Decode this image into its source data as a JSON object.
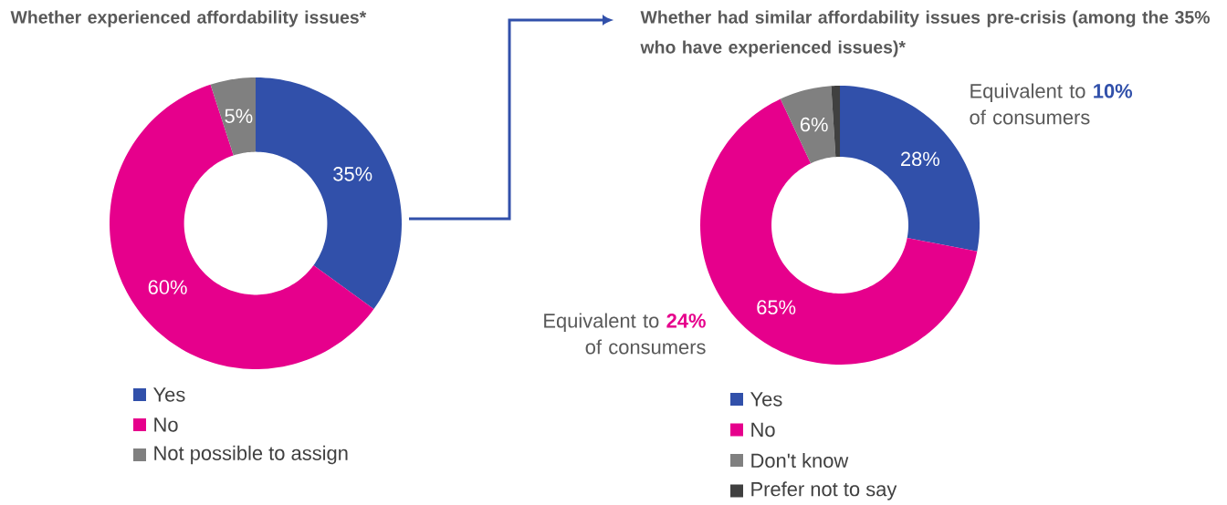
{
  "chart_data": [
    {
      "type": "donut",
      "title": "Whether experienced affordability issues*",
      "categories": [
        "Yes",
        "No",
        "Not possible to assign"
      ],
      "values": [
        35,
        60,
        5
      ],
      "colors": [
        "#3150aa",
        "#e6008c",
        "#808080"
      ],
      "value_labels": [
        "35%",
        "60%",
        "5%"
      ],
      "legend": "bottom"
    },
    {
      "type": "donut",
      "title": "Whether had similar affordability issues pre-crisis (among the 35% who have experienced issues)*",
      "categories": [
        "Yes",
        "No",
        "Don't know",
        "Prefer not to say"
      ],
      "values": [
        28,
        65,
        6,
        1
      ],
      "colors": [
        "#3150aa",
        "#e6008c",
        "#808080",
        "#404040"
      ],
      "value_labels": [
        "28%",
        "65%",
        "6%",
        null
      ],
      "legend": "bottom",
      "annotations": [
        "Equivalent to **10%** of consumers",
        "Equivalent to **24%** of consumers"
      ]
    }
  ]
}
